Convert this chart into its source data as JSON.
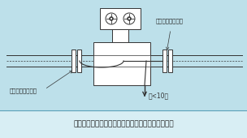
{
  "bg_color": "#bde0ea",
  "line_color": "#333333",
  "white_color": "#ffffff",
  "title_text": "在塑料管道或有绝缘衬里的管道上安装时接地示意图",
  "label_left": "接地法兰或接地环",
  "label_right": "接地法兰或接地环",
  "label_ground": "（<10）",
  "title_fontsize": 6.5,
  "label_fontsize": 5.0,
  "fig_bg": "#bde0ea",
  "caption_bg": "#d8eef4",
  "sep_color": "#5aa0b8"
}
